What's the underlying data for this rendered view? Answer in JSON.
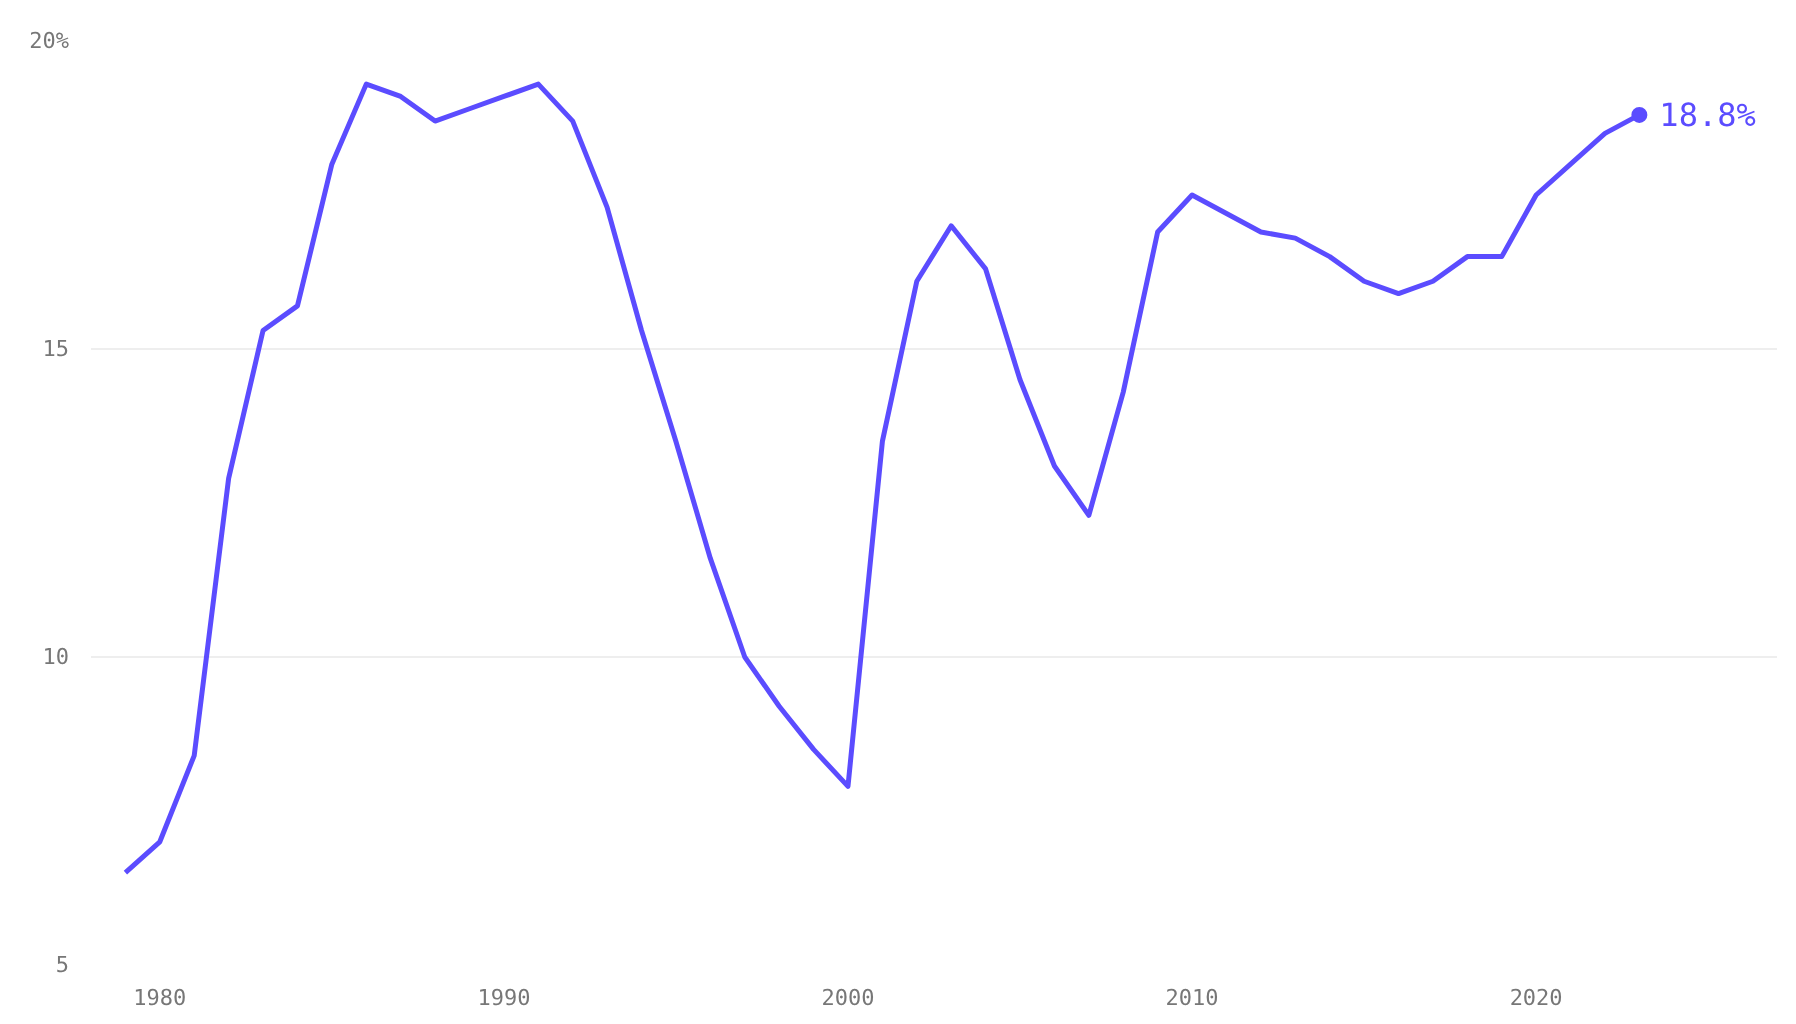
{
  "chart_data": {
    "type": "line",
    "x": [
      1979,
      1980,
      1981,
      1982,
      1983,
      1984,
      1985,
      1986,
      1987,
      1988,
      1989,
      1990,
      1991,
      1992,
      1993,
      1994,
      1995,
      1996,
      1997,
      1998,
      1999,
      2000,
      2001,
      2002,
      2003,
      2004,
      2005,
      2006,
      2007,
      2008,
      2009,
      2010,
      2011,
      2012,
      2013,
      2014,
      2015,
      2016,
      2017,
      2018,
      2019,
      2020,
      2021,
      2022,
      2023
    ],
    "series": [
      {
        "color": "#5b4cff",
        "values": [
          6.5,
          7.0,
          8.4,
          12.9,
          15.3,
          15.7,
          18.0,
          19.3,
          19.1,
          18.7,
          18.9,
          19.1,
          19.3,
          18.7,
          17.3,
          15.3,
          13.5,
          11.6,
          10.0,
          9.2,
          8.5,
          7.9,
          13.5,
          16.1,
          17.0,
          16.3,
          14.5,
          13.1,
          12.3,
          14.3,
          16.9,
          17.5,
          17.2,
          16.9,
          16.8,
          16.5,
          16.1,
          15.9,
          16.1,
          16.5,
          16.5,
          17.5,
          18.0,
          18.5,
          18.8
        ]
      }
    ],
    "annotations": [
      {
        "text": "18.8%",
        "x": 2023,
        "y": 18.8
      }
    ],
    "xlim": [
      1978,
      2027
    ],
    "ylim": [
      5,
      20
    ],
    "xticks": [
      1980,
      1990,
      2000,
      2010,
      2020
    ],
    "yticks": [
      {
        "value": 5,
        "label": "5"
      },
      {
        "value": 10,
        "label": "10"
      },
      {
        "value": 15,
        "label": "15"
      },
      {
        "value": 20,
        "label": "20%"
      }
    ],
    "grid": "y",
    "line_style": "solid"
  }
}
